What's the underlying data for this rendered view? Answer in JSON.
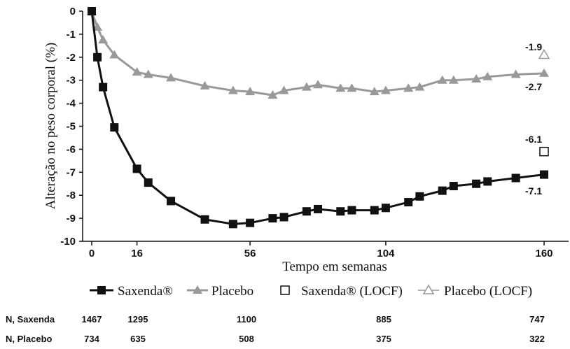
{
  "chart_data": {
    "type": "line",
    "xlabel": "Tempo em semanas",
    "ylabel": "Alteração no peso corporal (%)",
    "xlim": [
      0,
      160
    ],
    "ylim": [
      -10,
      0
    ],
    "x_ticks": [
      "0",
      "16",
      "56",
      "104",
      "160"
    ],
    "y_ticks": [
      "0",
      "-1",
      "-2",
      "-3",
      "-4",
      "-5",
      "-6",
      "-7",
      "-8",
      "-9",
      "-10"
    ],
    "grid": false,
    "legend_position": "bottom",
    "series": [
      {
        "name": "Saxenda®",
        "color": "#111111",
        "marker": "square-filled",
        "x": [
          0,
          2,
          4,
          8,
          16,
          20,
          28,
          40,
          50,
          56,
          64,
          68,
          76,
          80,
          88,
          92,
          100,
          104,
          112,
          116,
          124,
          128,
          136,
          140,
          150,
          160
        ],
        "values": [
          0,
          -2.0,
          -3.3,
          -5.05,
          -6.85,
          -7.45,
          -8.25,
          -9.05,
          -9.25,
          -9.2,
          -9.0,
          -8.95,
          -8.7,
          -8.6,
          -8.7,
          -8.65,
          -8.65,
          -8.55,
          -8.3,
          -8.05,
          -7.8,
          -7.6,
          -7.5,
          -7.4,
          -7.25,
          -7.1
        ]
      },
      {
        "name": "Placebo",
        "color": "#999999",
        "marker": "triangle-filled",
        "x": [
          0,
          2,
          4,
          8,
          16,
          20,
          28,
          40,
          50,
          56,
          64,
          68,
          76,
          80,
          88,
          92,
          100,
          104,
          112,
          116,
          124,
          128,
          136,
          140,
          150,
          160
        ],
        "values": [
          0,
          -0.7,
          -1.25,
          -1.9,
          -2.65,
          -2.75,
          -2.9,
          -3.25,
          -3.45,
          -3.5,
          -3.65,
          -3.45,
          -3.3,
          -3.2,
          -3.35,
          -3.35,
          -3.5,
          -3.45,
          -3.35,
          -3.3,
          -3.0,
          -3.0,
          -2.95,
          -2.85,
          -2.75,
          -2.7
        ]
      },
      {
        "name": "Saxenda® (LOCF)",
        "color": "#111111",
        "marker": "square-open",
        "x": [
          160
        ],
        "values": [
          -6.1
        ]
      },
      {
        "name": "Placebo (LOCF)",
        "color": "#999999",
        "marker": "triangle-open",
        "x": [
          160
        ],
        "values": [
          -1.9
        ]
      }
    ],
    "annotations": {
      "placebo_locf": "-1.9",
      "placebo_end": "-2.7",
      "saxenda_locf": "-6.1",
      "saxenda_end": "-7.1"
    },
    "at_risk": {
      "weeks": [
        0,
        16,
        56,
        104,
        160
      ],
      "rows": [
        {
          "label": "N, Saxenda",
          "values": [
            "1467",
            "1295",
            "1100",
            "885",
            "747"
          ]
        },
        {
          "label": "N, Placebo",
          "values": [
            "734",
            "635",
            "508",
            "375",
            "322"
          ]
        }
      ]
    }
  }
}
